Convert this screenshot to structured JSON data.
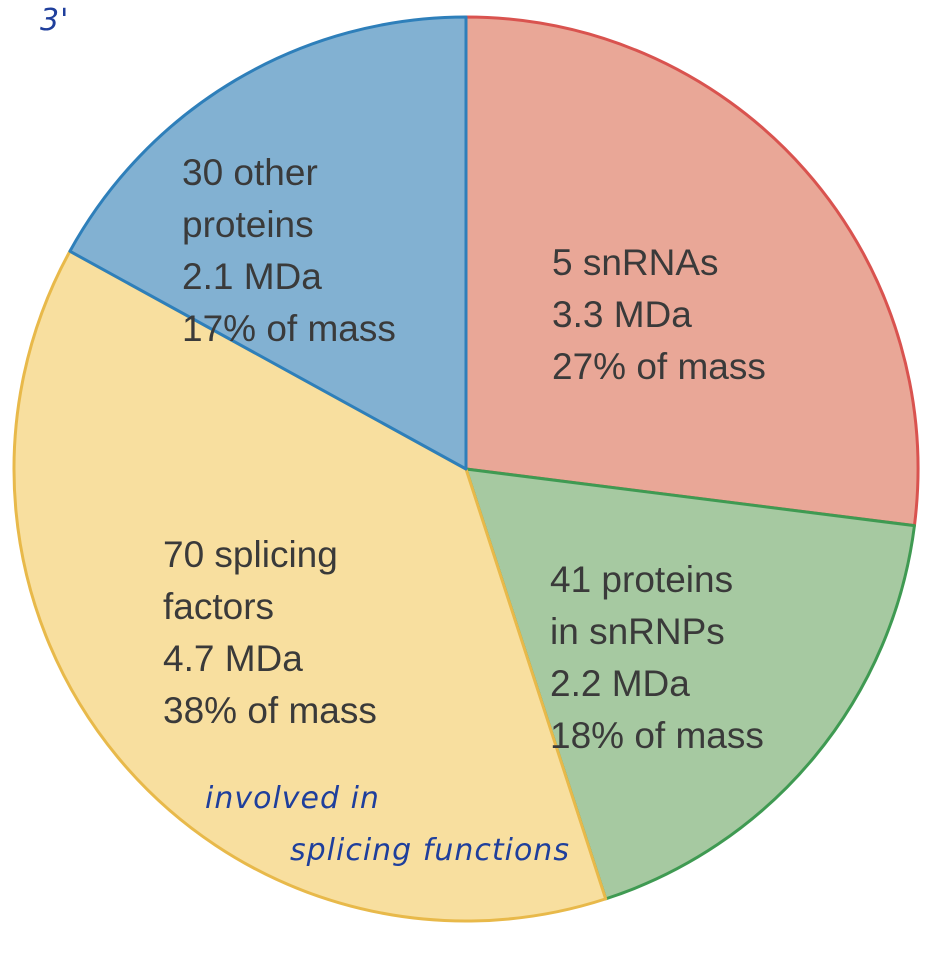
{
  "chart_data": {
    "type": "pie",
    "title": "",
    "slices": [
      {
        "lines": [
          "5 snRNAs",
          "3.3 MDa",
          "27% of mass"
        ],
        "value": 27,
        "fill": "#e9a797",
        "stroke": "#d9534f"
      },
      {
        "lines": [
          "41 proteins",
          "in snRNPs",
          "2.2 MDa",
          "18% of mass"
        ],
        "value": 18,
        "fill": "#a6c9a1",
        "stroke": "#3f9a52"
      },
      {
        "lines": [
          "70 splicing",
          "factors",
          "4.7 MDa",
          "38% of mass"
        ],
        "value": 38,
        "fill": "#f8df9f",
        "stroke": "#e8b94a"
      },
      {
        "lines": [
          "30 other",
          "proteins",
          "2.1 MDa",
          "17% of mass"
        ],
        "value": 17,
        "fill": "#82b1d2",
        "stroke": "#2e7fba"
      }
    ],
    "start_angle_deg": 0,
    "direction": "clockwise"
  },
  "annotations": {
    "handwritten": [
      "3'",
      "involved in",
      "splicing functions"
    ],
    "ink_color": "#1f3f9c"
  }
}
